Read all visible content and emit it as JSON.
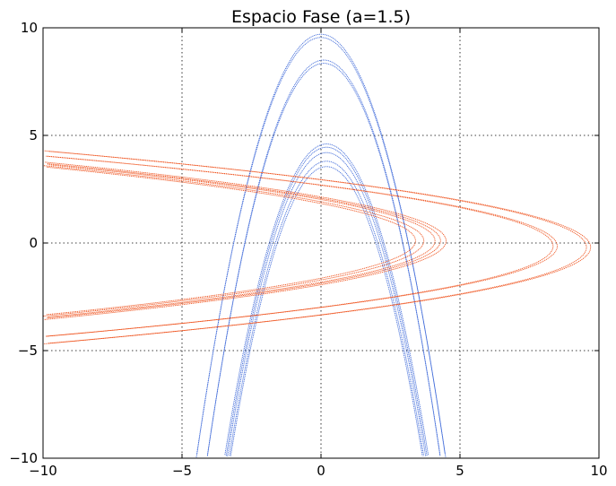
{
  "chart_data": {
    "type": "scatter",
    "title": "Espacio Fase (a=1.5)",
    "xlabel": "",
    "ylabel": "",
    "xlim": [
      -10,
      10
    ],
    "ylim": [
      -10,
      10
    ],
    "grid": true,
    "grid_style": "dotted",
    "xticks": [
      -10,
      -5,
      0,
      5,
      10
    ],
    "yticks": [
      -10,
      -5,
      0,
      5,
      10
    ],
    "xtick_labels": [
      "−10",
      "−5",
      "0",
      "5",
      "10"
    ],
    "ytick_labels": [
      "−10",
      "−5",
      "0",
      "5",
      "10"
    ],
    "series": [
      {
        "name": "parabola-vertical",
        "color": "#3a66d8",
        "marker": "dot",
        "curves": [
          {
            "vertex_x": 0.0,
            "vertex_y": 9.7,
            "coef": 0.98
          },
          {
            "vertex_x": 0.0,
            "vertex_y": 9.55,
            "coef": 0.97
          },
          {
            "vertex_x": 0.1,
            "vertex_y": 8.5,
            "coef": 1.05
          },
          {
            "vertex_x": 0.1,
            "vertex_y": 8.35,
            "coef": 1.04
          },
          {
            "vertex_x": 0.2,
            "vertex_y": 4.6,
            "coef": 1.08
          },
          {
            "vertex_x": 0.2,
            "vertex_y": 4.45,
            "coef": 1.1
          },
          {
            "vertex_x": 0.2,
            "vertex_y": 4.2,
            "coef": 1.11
          },
          {
            "vertex_x": 0.2,
            "vertex_y": 3.8,
            "coef": 1.12
          },
          {
            "vertex_x": 0.2,
            "vertex_y": 3.55,
            "coef": 1.13
          }
        ]
      },
      {
        "name": "parabola-horizontal",
        "color": "#ee4a12",
        "marker": "dot",
        "curves": [
          {
            "vertex_x": 9.7,
            "vertex_y": -0.2,
            "coef": 0.98
          },
          {
            "vertex_x": 9.55,
            "vertex_y": -0.2,
            "coef": 0.97
          },
          {
            "vertex_x": 8.5,
            "vertex_y": -0.15,
            "coef": 1.05
          },
          {
            "vertex_x": 8.35,
            "vertex_y": -0.15,
            "coef": 1.04
          },
          {
            "vertex_x": 4.5,
            "vertex_y": 0.1,
            "coef": 1.08
          },
          {
            "vertex_x": 4.3,
            "vertex_y": 0.1,
            "coef": 1.1
          },
          {
            "vertex_x": 4.1,
            "vertex_y": 0.1,
            "coef": 1.11
          },
          {
            "vertex_x": 3.7,
            "vertex_y": 0.1,
            "coef": 1.12
          },
          {
            "vertex_x": 3.4,
            "vertex_y": 0.1,
            "coef": 1.13
          }
        ]
      }
    ]
  }
}
